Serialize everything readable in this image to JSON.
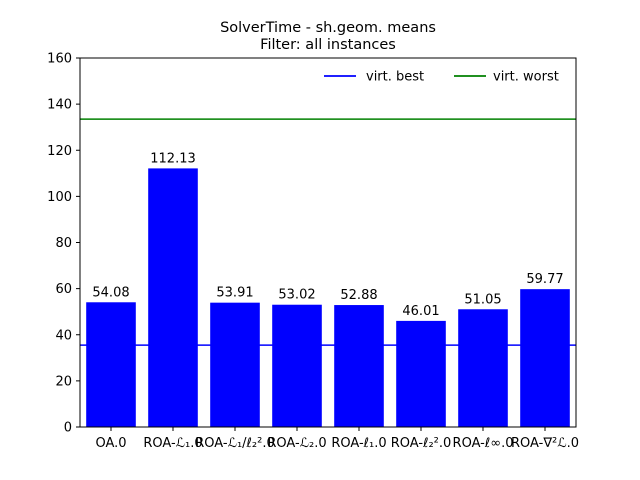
{
  "chart_data": {
    "type": "bar",
    "title": "SolverTime - sh.geom. means",
    "subtitle": "Filter: all instances",
    "categories": [
      "OA.0",
      "ROA-ℒ₁.0",
      "ROA-ℒ₁/ℓ₂².0",
      "ROA-ℒ₂.0",
      "ROA-ℓ₁.0",
      "ROA-ℓ₂².0",
      "ROA-ℓ∞.0",
      "ROA-∇²ℒ.0"
    ],
    "values": [
      54.08,
      112.13,
      53.91,
      53.02,
      52.88,
      46.01,
      51.05,
      59.77
    ],
    "data_labels": [
      "54.08",
      "112.13",
      "53.91",
      "53.02",
      "52.88",
      "46.01",
      "51.05",
      "59.77"
    ],
    "bar_color": "#0000ff",
    "ylim": [
      0,
      160
    ],
    "yticks": [
      0,
      20,
      40,
      60,
      80,
      100,
      120,
      140,
      160
    ],
    "reference_lines": [
      {
        "name": "virt. best",
        "value": 35.5,
        "color": "#0000ff"
      },
      {
        "name": "virt. worst",
        "value": 133.5,
        "color": "#008000"
      }
    ],
    "legend": {
      "placement": "top-right",
      "frame": false
    },
    "grid": false
  }
}
